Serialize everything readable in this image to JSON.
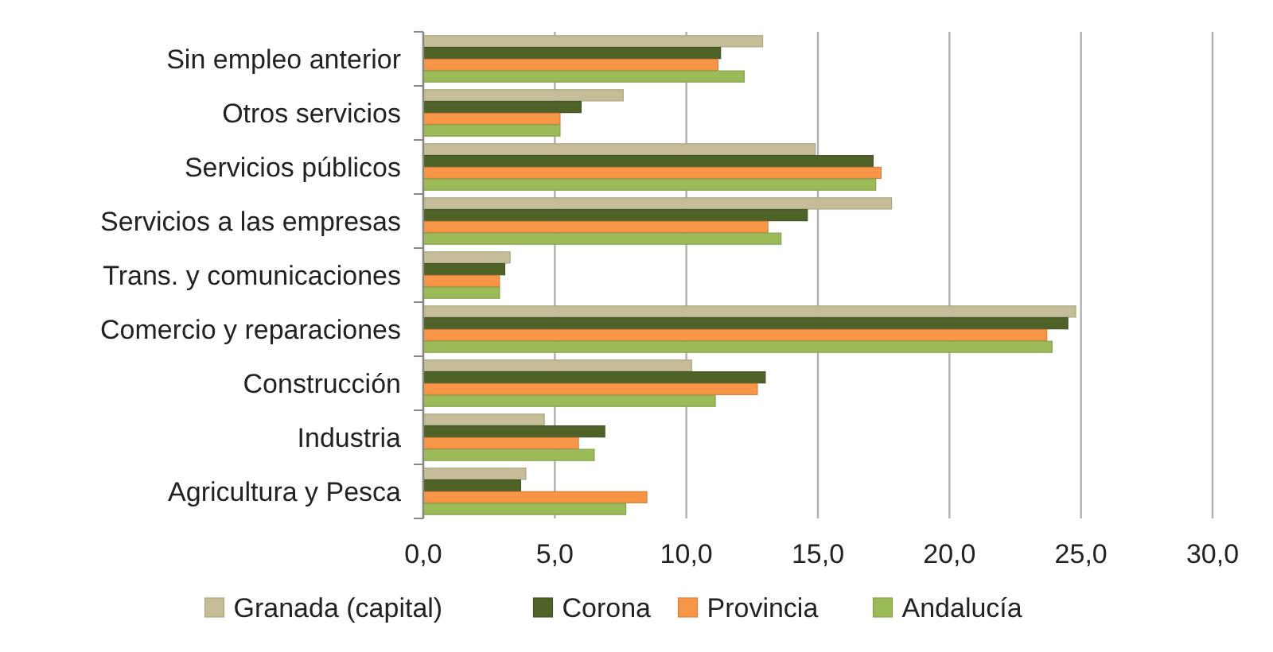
{
  "chart_data": {
    "type": "bar",
    "orientation": "horizontal",
    "categories": [
      "Sin empleo anterior",
      "Otros servicios",
      "Servicios públicos",
      "Servicios a las empresas",
      "Trans. y comunicaciones",
      "Comercio y reparaciones",
      "Construcción",
      "Industria",
      "Agricultura y Pesca"
    ],
    "series": [
      {
        "name": "Granada (capital)",
        "color": "#c4bd97",
        "values": [
          12.9,
          7.6,
          14.9,
          17.8,
          3.3,
          24.8,
          10.2,
          4.6,
          3.9
        ]
      },
      {
        "name": "Corona",
        "color": "#4f6228",
        "values": [
          11.3,
          6.0,
          17.1,
          14.6,
          3.1,
          24.5,
          13.0,
          6.9,
          3.7
        ]
      },
      {
        "name": "Provincia",
        "color": "#f79646",
        "values": [
          11.2,
          5.2,
          17.4,
          13.1,
          2.9,
          23.7,
          12.7,
          5.9,
          8.5
        ]
      },
      {
        "name": "Andalucía",
        "color": "#9bbb59",
        "values": [
          12.2,
          5.2,
          17.2,
          13.6,
          2.9,
          23.9,
          11.1,
          6.5,
          7.7
        ]
      }
    ],
    "xlim": [
      0,
      30
    ],
    "xticks": [
      {
        "value": 0,
        "label": "0,0"
      },
      {
        "value": 5,
        "label": "5,0"
      },
      {
        "value": 10,
        "label": "10,0"
      },
      {
        "value": 15,
        "label": "15,0"
      },
      {
        "value": 20,
        "label": "20,0"
      },
      {
        "value": 25,
        "label": "25,0"
      },
      {
        "value": 30,
        "label": "30,0"
      }
    ],
    "grid": "x",
    "legend": "bottom"
  }
}
